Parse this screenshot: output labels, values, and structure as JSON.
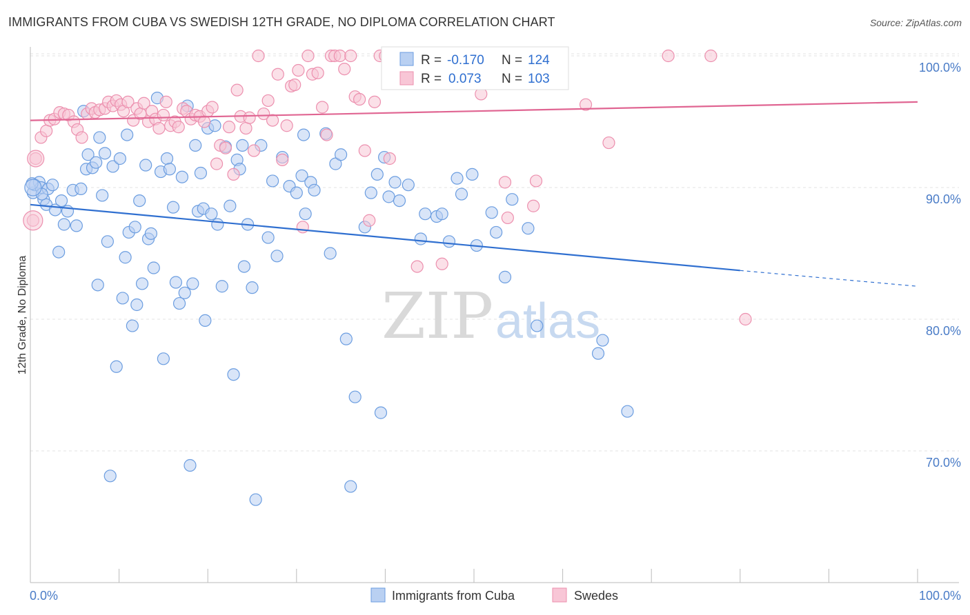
{
  "header": {
    "title": "IMMIGRANTS FROM CUBA VS SWEDISH 12TH GRADE, NO DIPLOMA CORRELATION CHART",
    "source": "Source: ZipAtlas.com"
  },
  "watermark": {
    "zip": "ZIP",
    "atlas": "atlas"
  },
  "chart_data": {
    "type": "scatter",
    "title": "IMMIGRANTS FROM CUBA VS SWEDISH 12TH GRADE, NO DIPLOMA CORRELATION CHART",
    "ylabel": "12th Grade, No Diploma",
    "xlabel": "",
    "xlim": [
      0,
      100
    ],
    "ylim": [
      60.5,
      101.5
    ],
    "x_tick_labels": [
      "0.0%",
      "100.0%"
    ],
    "y_ticks": [
      70,
      80,
      90,
      100
    ],
    "y_tick_labels": [
      "70.0%",
      "80.0%",
      "90.0%",
      "100.0%"
    ],
    "grid": true,
    "legend": {
      "placement": "top-center",
      "entries": [
        {
          "r_label": "R =",
          "r_value": "-0.170",
          "n_label": "N =",
          "n_value": "124"
        },
        {
          "r_label": "R =",
          "r_value": "0.073",
          "n_label": "N =",
          "n_value": "103"
        }
      ]
    },
    "series": [
      {
        "name": "Immigrants from Cuba",
        "color": "#6b9de0",
        "fill": "#b9d0f2",
        "trend": {
          "x0": 0,
          "y0": 88.7,
          "x1": 80,
          "y1": 83.7,
          "dash_to_x": 100,
          "dash_to_y": 82.5,
          "color": "#2f6fd0"
        },
        "points": [
          [
            0.3,
            89.6
          ],
          [
            0.5,
            90.2
          ],
          [
            1.0,
            90.4
          ],
          [
            1.2,
            90.0
          ],
          [
            1.5,
            89.1
          ],
          [
            1.8,
            88.7
          ],
          [
            2.0,
            89.9
          ],
          [
            2.5,
            90.2
          ],
          [
            2.8,
            88.3
          ],
          [
            3.2,
            85.1
          ],
          [
            3.5,
            89.0
          ],
          [
            3.8,
            87.2
          ],
          [
            4.2,
            88.2
          ],
          [
            4.8,
            89.8
          ],
          [
            5.2,
            87.1
          ],
          [
            5.7,
            89.9
          ],
          [
            6.0,
            95.8
          ],
          [
            6.3,
            91.4
          ],
          [
            6.5,
            92.5
          ],
          [
            7.0,
            91.5
          ],
          [
            7.4,
            91.9
          ],
          [
            7.6,
            82.6
          ],
          [
            7.8,
            93.8
          ],
          [
            8.1,
            89.4
          ],
          [
            8.4,
            92.6
          ],
          [
            8.7,
            85.9
          ],
          [
            9.0,
            68.1
          ],
          [
            9.3,
            91.6
          ],
          [
            9.7,
            76.4
          ],
          [
            10.1,
            92.2
          ],
          [
            10.4,
            81.6
          ],
          [
            10.7,
            84.7
          ],
          [
            10.9,
            94.0
          ],
          [
            11.1,
            86.6
          ],
          [
            11.5,
            79.5
          ],
          [
            11.8,
            87.0
          ],
          [
            12.0,
            81.1
          ],
          [
            12.3,
            89.0
          ],
          [
            12.6,
            82.7
          ],
          [
            13.0,
            91.7
          ],
          [
            13.3,
            86.1
          ],
          [
            13.6,
            86.5
          ],
          [
            13.9,
            83.9
          ],
          [
            14.3,
            96.8
          ],
          [
            14.7,
            91.2
          ],
          [
            15.0,
            77.0
          ],
          [
            15.4,
            92.2
          ],
          [
            15.7,
            91.4
          ],
          [
            16.1,
            88.5
          ],
          [
            16.4,
            82.8
          ],
          [
            16.8,
            81.2
          ],
          [
            17.1,
            90.8
          ],
          [
            17.4,
            82.0
          ],
          [
            17.7,
            96.2
          ],
          [
            18.0,
            68.9
          ],
          [
            18.3,
            82.7
          ],
          [
            18.6,
            93.2
          ],
          [
            18.9,
            88.2
          ],
          [
            19.2,
            91.1
          ],
          [
            19.5,
            88.4
          ],
          [
            19.7,
            79.9
          ],
          [
            20.0,
            94.5
          ],
          [
            20.4,
            88.0
          ],
          [
            20.8,
            94.7
          ],
          [
            21.1,
            87.2
          ],
          [
            21.6,
            82.5
          ],
          [
            22.0,
            93.1
          ],
          [
            22.5,
            88.6
          ],
          [
            22.9,
            75.8
          ],
          [
            23.3,
            92.1
          ],
          [
            23.6,
            91.4
          ],
          [
            23.9,
            93.2
          ],
          [
            24.1,
            84.0
          ],
          [
            24.5,
            87.2
          ],
          [
            25.0,
            82.4
          ],
          [
            25.4,
            66.3
          ],
          [
            26.0,
            93.2
          ],
          [
            26.8,
            86.2
          ],
          [
            27.3,
            90.5
          ],
          [
            27.8,
            84.8
          ],
          [
            28.4,
            92.3
          ],
          [
            29.2,
            90.1
          ],
          [
            30.0,
            89.6
          ],
          [
            30.6,
            90.9
          ],
          [
            30.8,
            94.0
          ],
          [
            31.0,
            88.0
          ],
          [
            31.6,
            90.4
          ],
          [
            32.0,
            89.8
          ],
          [
            33.3,
            94.1
          ],
          [
            33.8,
            85.0
          ],
          [
            34.4,
            91.8
          ],
          [
            35.0,
            92.5
          ],
          [
            35.6,
            78.5
          ],
          [
            36.1,
            67.3
          ],
          [
            36.6,
            74.1
          ],
          [
            37.7,
            87.0
          ],
          [
            38.4,
            89.6
          ],
          [
            39.1,
            91.0
          ],
          [
            39.5,
            72.9
          ],
          [
            39.9,
            92.3
          ],
          [
            40.4,
            89.3
          ],
          [
            41.1,
            90.4
          ],
          [
            41.6,
            89.0
          ],
          [
            42.6,
            90.2
          ],
          [
            44.0,
            86.1
          ],
          [
            44.5,
            88.0
          ],
          [
            45.8,
            87.8
          ],
          [
            46.4,
            88.0
          ],
          [
            47.2,
            85.9
          ],
          [
            48.1,
            90.7
          ],
          [
            48.6,
            89.5
          ],
          [
            49.8,
            91.0
          ],
          [
            50.3,
            85.6
          ],
          [
            52.0,
            88.1
          ],
          [
            52.5,
            86.6
          ],
          [
            53.5,
            83.2
          ],
          [
            54.3,
            89.1
          ],
          [
            56.1,
            86.9
          ],
          [
            57.1,
            79.5
          ],
          [
            64.0,
            77.4
          ],
          [
            64.5,
            78.4
          ],
          [
            67.3,
            73.0
          ],
          [
            0.2,
            90.3
          ],
          [
            1.3,
            89.5
          ]
        ]
      },
      {
        "name": "Swedes",
        "color": "#ec8fae",
        "fill": "#f8c6d6",
        "trend": {
          "x0": 0,
          "y0": 95.1,
          "x1": 100,
          "y1": 96.5,
          "color": "#e06592"
        },
        "points": [
          [
            0.3,
            87.5
          ],
          [
            0.6,
            92.2
          ],
          [
            1.2,
            93.8
          ],
          [
            1.8,
            94.3
          ],
          [
            2.2,
            95.1
          ],
          [
            2.7,
            95.2
          ],
          [
            3.3,
            95.7
          ],
          [
            3.8,
            95.6
          ],
          [
            4.3,
            95.5
          ],
          [
            4.9,
            95.0
          ],
          [
            5.3,
            94.4
          ],
          [
            5.8,
            93.8
          ],
          [
            6.4,
            95.6
          ],
          [
            6.9,
            96.0
          ],
          [
            7.3,
            95.7
          ],
          [
            7.8,
            95.9
          ],
          [
            8.4,
            96.0
          ],
          [
            8.8,
            96.5
          ],
          [
            9.3,
            96.2
          ],
          [
            9.7,
            96.6
          ],
          [
            10.2,
            96.3
          ],
          [
            10.5,
            95.8
          ],
          [
            11.0,
            96.5
          ],
          [
            11.6,
            95.1
          ],
          [
            12.0,
            96.0
          ],
          [
            12.4,
            95.6
          ],
          [
            12.8,
            96.4
          ],
          [
            13.3,
            95.0
          ],
          [
            13.7,
            95.8
          ],
          [
            14.1,
            95.2
          ],
          [
            14.5,
            94.5
          ],
          [
            15.0,
            95.5
          ],
          [
            15.3,
            96.5
          ],
          [
            15.8,
            94.7
          ],
          [
            16.3,
            95.0
          ],
          [
            16.7,
            94.6
          ],
          [
            17.2,
            96.0
          ],
          [
            17.6,
            95.8
          ],
          [
            18.1,
            95.2
          ],
          [
            18.6,
            95.5
          ],
          [
            19.1,
            95.4
          ],
          [
            19.6,
            95.0
          ],
          [
            20.0,
            95.8
          ],
          [
            20.5,
            96.1
          ],
          [
            21.0,
            91.8
          ],
          [
            21.4,
            93.2
          ],
          [
            22.0,
            93.0
          ],
          [
            22.4,
            94.6
          ],
          [
            22.9,
            91.0
          ],
          [
            23.3,
            97.4
          ],
          [
            23.7,
            95.4
          ],
          [
            24.3,
            94.5
          ],
          [
            24.7,
            95.3
          ],
          [
            25.2,
            92.8
          ],
          [
            25.7,
            100.0
          ],
          [
            26.3,
            95.6
          ],
          [
            26.8,
            96.6
          ],
          [
            27.3,
            95.1
          ],
          [
            27.9,
            98.6
          ],
          [
            28.4,
            92.1
          ],
          [
            28.9,
            94.7
          ],
          [
            29.4,
            97.7
          ],
          [
            29.8,
            97.8
          ],
          [
            30.2,
            98.9
          ],
          [
            30.7,
            87.0
          ],
          [
            31.3,
            100.0
          ],
          [
            31.8,
            98.6
          ],
          [
            32.4,
            98.7
          ],
          [
            32.9,
            96.1
          ],
          [
            33.4,
            94.0
          ],
          [
            33.9,
            100.0
          ],
          [
            34.3,
            100.0
          ],
          [
            34.9,
            100.0
          ],
          [
            35.4,
            99.0
          ],
          [
            36.1,
            100.0
          ],
          [
            36.6,
            96.9
          ],
          [
            37.1,
            96.7
          ],
          [
            37.7,
            92.8
          ],
          [
            38.2,
            87.5
          ],
          [
            38.8,
            96.5
          ],
          [
            39.4,
            100.0
          ],
          [
            40.0,
            100.0
          ],
          [
            40.5,
            92.2
          ],
          [
            43.1,
            100.0
          ],
          [
            43.6,
            84.0
          ],
          [
            45.0,
            100.0
          ],
          [
            46.4,
            84.2
          ],
          [
            50.0,
            100.0
          ],
          [
            50.8,
            97.1
          ],
          [
            53.5,
            90.4
          ],
          [
            53.8,
            87.7
          ],
          [
            54.3,
            100.0
          ],
          [
            55.0,
            100.0
          ],
          [
            56.7,
            88.6
          ],
          [
            57.0,
            90.5
          ],
          [
            57.2,
            100.0
          ],
          [
            58.6,
            100.0
          ],
          [
            59.9,
            100.0
          ],
          [
            62.6,
            96.3
          ],
          [
            65.2,
            93.4
          ],
          [
            71.9,
            100.0
          ],
          [
            76.7,
            100.0
          ],
          [
            80.6,
            80.0
          ]
        ]
      }
    ]
  },
  "bottom_legend": {
    "items": [
      {
        "label": "Immigrants from Cuba"
      },
      {
        "label": "Swedes"
      }
    ]
  }
}
